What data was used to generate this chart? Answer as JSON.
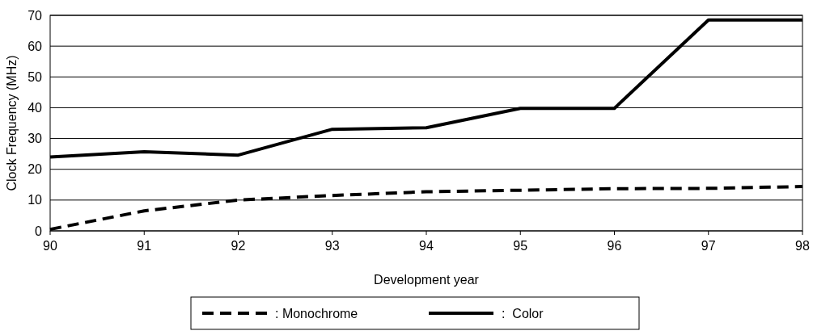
{
  "chart_data": {
    "type": "line",
    "xlabel": "Development year",
    "ylabel": "Clock Frequency (MHz)",
    "x": [
      90,
      91,
      92,
      93,
      94,
      95,
      96,
      97,
      98
    ],
    "xlim": [
      90,
      98
    ],
    "xticks": [
      90,
      91,
      92,
      93,
      94,
      95,
      96,
      97,
      98
    ],
    "ylim": [
      0,
      70
    ],
    "yticks": [
      0,
      10,
      20,
      30,
      40,
      50,
      60,
      70
    ],
    "grid": "y",
    "legend": "bottom",
    "series": [
      {
        "name": ": Monochrome",
        "color": "#000000",
        "line_style": "dashed",
        "values": [
          0.5,
          6.5,
          10,
          11.5,
          12.7,
          13.2,
          13.7,
          13.8,
          14.4
        ]
      },
      {
        "name": ":  Color",
        "color": "#000000",
        "line_style": "solid",
        "values": [
          24,
          25.7,
          24.6,
          33,
          33.5,
          39.8,
          39.8,
          68.5,
          68.5
        ]
      }
    ]
  }
}
